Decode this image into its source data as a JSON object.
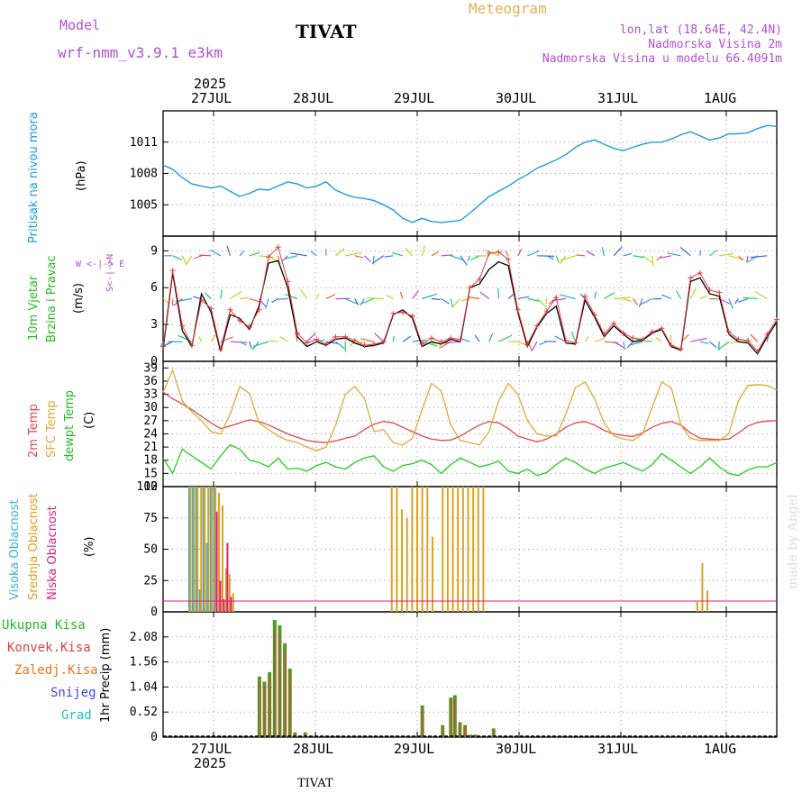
{
  "header": {
    "model_label": "Model",
    "model_value": "wrf-nmm_v3.9.1 e3km",
    "station": "TIVAT",
    "title": "Meteogram",
    "coords": "lon,lat (18.64E, 42.4N)",
    "elevation": "Nadmorska Visina 2m",
    "model_elevation": "Nadmorska Visina u modelu 66.4091m",
    "footer_station": "TIVAT",
    "watermark": "made by Angel"
  },
  "time_axis": {
    "year": "2025",
    "days": [
      "27JUL",
      "28JUL",
      "29JUL",
      "30JUL",
      "31JUL",
      "1AUG"
    ]
  },
  "panel_labels": {
    "pressure": {
      "name": "Pritisak na nivou mora",
      "unit": "(hPa)"
    },
    "wind": {
      "name1": "10m Vjetar",
      "name2": "Brzina i Pravac",
      "unit": "(m/s)",
      "compass": "W <-|-> E",
      "compass_ns": "S<-|->N"
    },
    "temp": {
      "name1": "2m Temp",
      "name2": "SFC Temp",
      "name3": "dewpt Temp",
      "unit": "(C)"
    },
    "cloud": {
      "name1": "Visoka Oblacnost",
      "name2": "Srednja Oblacnost",
      "name3": "Niska Oblacnost",
      "unit": "(%)"
    },
    "precip": {
      "l1": "Ukupna Kisa",
      "l2": "Konvek.Kisa",
      "l3": "Zaledj.Kisa",
      "l4": "Snijeg",
      "l5": "Grad",
      "unit": "1hr Precip (mm)"
    }
  },
  "colors": {
    "pressure": "#1e9be0",
    "temp2m": "#e04848",
    "sfc": "#e0a838",
    "dewpt": "#22cc22",
    "high_cloud": "#3ab0d8",
    "mid_cloud": "#e0a020",
    "low_cloud": "#d82080",
    "precip_total": "#559922",
    "precip_conv": "#e04040",
    "precip_freeze": "#f07020",
    "snow": "#4444ee",
    "hail": "#20c0c0",
    "wind_line": "#000000",
    "wind_cross": "#e04040",
    "purple": "#b050d0"
  },
  "chart_data": [
    {
      "type": "line",
      "name": "pressure",
      "ylabel": "(hPa)",
      "yticks": [
        "1005",
        "1008",
        "1011"
      ],
      "ylim": [
        1002,
        1014
      ],
      "x_hours_from_start": "0 = 2025-07-26 12UTC, step 3h",
      "values": [
        1008.8,
        1008.4,
        1007.6,
        1007.0,
        1006.8,
        1006.6,
        1006.8,
        1006.3,
        1005.8,
        1006.1,
        1006.5,
        1006.4,
        1006.8,
        1007.2,
        1007.0,
        1006.6,
        1006.8,
        1007.2,
        1006.4,
        1006.0,
        1005.7,
        1005.6,
        1005.4,
        1005.0,
        1004.5,
        1003.7,
        1003.3,
        1003.7,
        1003.4,
        1003.3,
        1003.4,
        1003.5,
        1004.2,
        1005.0,
        1005.8,
        1006.3,
        1006.8,
        1007.4,
        1007.9,
        1008.5,
        1008.9,
        1009.3,
        1009.8,
        1010.5,
        1011.0,
        1011.2,
        1010.8,
        1010.4,
        1010.2,
        1010.5,
        1010.8,
        1011.0,
        1011.0,
        1011.3,
        1011.7,
        1012.0,
        1011.6,
        1011.2,
        1011.4,
        1011.8,
        1011.8,
        1011.9,
        1012.3,
        1012.6,
        1012.5
      ]
    },
    {
      "type": "line",
      "name": "wind_speed",
      "ylabel": "(m/s)",
      "yticks": [
        "0",
        "3",
        "6",
        "9"
      ],
      "ylim": [
        0,
        10.2
      ],
      "values": [
        1.0,
        7.2,
        2.5,
        1.2,
        5.5,
        4.0,
        0.8,
        3.8,
        3.5,
        2.6,
        4.5,
        8.0,
        8.2,
        6.0,
        2.0,
        1.2,
        1.6,
        1.3,
        1.8,
        1.9,
        1.5,
        1.2,
        1.3,
        1.5,
        3.8,
        4.2,
        3.5,
        1.2,
        1.6,
        1.4,
        1.8,
        1.6,
        6.0,
        6.3,
        7.5,
        8.1,
        7.8,
        4.0,
        1.2,
        2.8,
        3.9,
        4.5,
        1.5,
        1.4,
        5.0,
        3.6,
        2.0,
        2.9,
        2.2,
        1.6,
        1.7,
        2.3,
        2.6,
        1.2,
        0.9,
        6.5,
        6.8,
        5.5,
        5.3,
        2.2,
        1.6,
        1.5,
        0.6,
        2.0,
        3.2
      ],
      "crosses": [
        1.2,
        7.4,
        2.9,
        1.3,
        5.0,
        4.3,
        1.0,
        4.2,
        3.3,
        2.8,
        4.2,
        8.5,
        9.3,
        6.5,
        2.3,
        1.5,
        1.8,
        1.4,
        2.0,
        2.0,
        1.7,
        1.3,
        1.4,
        1.6,
        3.9,
        4.0,
        3.7,
        1.4,
        1.9,
        1.6,
        1.9,
        1.8,
        6.0,
        6.7,
        8.8,
        8.9,
        8.3,
        4.2,
        1.4,
        2.9,
        4.1,
        5.2,
        1.7,
        1.5,
        5.3,
        3.8,
        2.2,
        3.1,
        2.3,
        1.9,
        1.8,
        2.4,
        2.7,
        1.3,
        1.0,
        6.8,
        7.2,
        5.8,
        5.6,
        2.4,
        1.8,
        1.7,
        0.8,
        2.2,
        3.4
      ]
    },
    {
      "type": "line",
      "name": "temperature",
      "ylabel": "(C)",
      "yticks": [
        "12",
        "15",
        "18",
        "21",
        "24",
        "27",
        "30",
        "33",
        "36",
        "39"
      ],
      "ylim": [
        12,
        40.5
      ],
      "series": [
        {
          "name": "2m Temp",
          "values": [
            33.5,
            32.0,
            30.8,
            29.5,
            28.0,
            26.5,
            25.2,
            25.8,
            26.5,
            27.2,
            26.8,
            26.0,
            25.0,
            24.0,
            23.2,
            22.5,
            22.2,
            22.0,
            22.4,
            23.0,
            23.5,
            25.0,
            26.2,
            26.8,
            26.5,
            25.5,
            24.5,
            23.5,
            22.8,
            22.5,
            22.6,
            23.5,
            24.8,
            26.0,
            26.8,
            26.5,
            25.2,
            23.5,
            22.8,
            22.2,
            22.8,
            24.0,
            25.5,
            26.5,
            26.8,
            26.0,
            24.8,
            24.0,
            23.6,
            23.4,
            24.2,
            25.5,
            26.4,
            26.8,
            26.0,
            24.2,
            23.0,
            22.8,
            22.7,
            22.8,
            24.2,
            25.8,
            26.6,
            26.9,
            27.0
          ]
        },
        {
          "name": "SFC Temp",
          "values": [
            33.5,
            38.5,
            31.5,
            29.0,
            27.0,
            24.5,
            24.0,
            28.5,
            34.8,
            33.2,
            26.5,
            25.0,
            23.5,
            22.5,
            22.0,
            21.0,
            20.2,
            21.0,
            26.0,
            33.0,
            34.8,
            32.0,
            24.5,
            25.0,
            22.0,
            21.5,
            23.0,
            29.5,
            35.5,
            33.8,
            26.0,
            22.5,
            22.0,
            21.5,
            24.5,
            31.5,
            35.5,
            33.0,
            27.0,
            24.0,
            23.5,
            23.5,
            28.5,
            34.5,
            35.8,
            32.0,
            26.5,
            23.5,
            22.8,
            22.5,
            24.0,
            30.0,
            35.8,
            34.5,
            26.0,
            23.0,
            22.5,
            22.5,
            22.5,
            24.0,
            31.5,
            35.0,
            35.2,
            35.0,
            34.0
          ]
        },
        {
          "name": "dewpt Temp",
          "values": [
            18.5,
            15.0,
            20.5,
            19.0,
            17.5,
            16.0,
            19.0,
            21.5,
            20.5,
            18.0,
            17.5,
            16.5,
            18.5,
            16.0,
            16.2,
            15.5,
            16.8,
            17.5,
            16.5,
            16.0,
            17.5,
            18.5,
            19.0,
            16.5,
            15.5,
            16.8,
            17.2,
            18.0,
            17.0,
            15.0,
            17.0,
            18.5,
            17.5,
            16.5,
            17.0,
            17.8,
            15.5,
            15.0,
            16.0,
            14.5,
            15.2,
            17.0,
            18.5,
            17.5,
            16.0,
            15.0,
            16.2,
            16.8,
            17.5,
            16.5,
            15.5,
            17.0,
            19.5,
            18.0,
            16.5,
            15.0,
            16.5,
            18.5,
            16.5,
            15.0,
            14.5,
            15.8,
            16.5,
            16.5,
            17.5
          ]
        }
      ]
    },
    {
      "type": "bar",
      "name": "cloud",
      "ylabel": "(%)",
      "yticks": [
        "0",
        "25",
        "50",
        "75",
        "100"
      ],
      "ylim": [
        0,
        100
      ],
      "series": [
        {
          "name": "Visoka Oblacnost",
          "values": [
            0,
            0,
            0,
            0,
            100,
            100,
            100,
            18,
            100,
            55,
            100,
            100,
            0,
            0,
            0,
            0,
            0,
            0,
            0,
            0,
            0,
            0,
            0,
            0,
            0,
            0,
            0,
            0,
            0,
            0,
            0,
            0,
            0,
            0,
            0,
            0,
            0,
            0,
            0,
            0,
            0,
            0,
            0,
            0,
            0,
            0,
            0,
            0,
            0,
            0,
            0,
            0,
            0,
            0,
            0,
            0,
            0,
            0,
            0,
            0,
            0,
            0,
            0,
            0
          ]
        },
        {
          "name": "Srednja Oblacnost",
          "values": [
            0,
            0,
            0,
            0,
            100,
            100,
            100,
            100,
            100,
            100,
            100,
            100,
            95,
            85,
            35,
            30,
            15,
            0,
            0,
            0,
            0,
            0,
            0,
            0,
            0,
            0,
            0,
            0,
            0,
            0,
            0,
            0,
            0,
            0,
            0,
            0,
            0,
            0,
            0,
            0,
            0,
            0,
            0,
            0,
            0,
            0,
            0,
            0,
            0,
            0,
            0,
            0,
            0,
            0,
            0,
            0,
            0,
            0,
            0,
            0,
            0,
            0,
            0,
            0
          ]
        },
        {
          "name": "Niska Oblacnost",
          "values": [
            0,
            0,
            0,
            0,
            0,
            0,
            0,
            0,
            0,
            0,
            0,
            80,
            25,
            10,
            55,
            12,
            0,
            0,
            0,
            0,
            0,
            0,
            0,
            0,
            0,
            0,
            0,
            0,
            0,
            0,
            0,
            0,
            0,
            0,
            0,
            0,
            0,
            0,
            0,
            0,
            0,
            0,
            0,
            0,
            0,
            0,
            0,
            0,
            0,
            0,
            0,
            0,
            0,
            0,
            0,
            0,
            0,
            0,
            0,
            0,
            0,
            0,
            0,
            0
          ]
        }
      ],
      "mid_events": [
        {
          "day_offset": 1.75,
          "value": 100
        },
        {
          "day_offset": 1.8,
          "value": 100
        },
        {
          "day_offset": 1.85,
          "value": 82
        },
        {
          "day_offset": 1.9,
          "value": 75
        },
        {
          "day_offset": 1.95,
          "value": 100
        },
        {
          "day_offset": 2.0,
          "value": 100
        },
        {
          "day_offset": 2.05,
          "value": 100
        },
        {
          "day_offset": 2.1,
          "value": 100
        },
        {
          "day_offset": 2.15,
          "value": 60
        },
        {
          "day_offset": 2.25,
          "value": 100
        },
        {
          "day_offset": 2.3,
          "value": 100
        },
        {
          "day_offset": 2.35,
          "value": 100
        },
        {
          "day_offset": 2.4,
          "value": 100
        },
        {
          "day_offset": 2.45,
          "value": 100
        },
        {
          "day_offset": 2.5,
          "value": 100
        },
        {
          "day_offset": 2.55,
          "value": 100
        },
        {
          "day_offset": 2.6,
          "value": 100
        },
        {
          "day_offset": 2.65,
          "value": 100
        },
        {
          "day_offset": 4.75,
          "value": 8
        },
        {
          "day_offset": 4.8,
          "value": 39
        },
        {
          "day_offset": 4.85,
          "value": 17
        }
      ]
    },
    {
      "type": "bar",
      "name": "precipitation",
      "ylabel": "1hr Precip (mm)",
      "yticks": [
        "0",
        "0.52",
        "1.04",
        "1.56",
        "2.08"
      ],
      "ylim": [
        0,
        2.6
      ],
      "events": [
        {
          "day_offset": 0.45,
          "total": 1.26
        },
        {
          "day_offset": 0.5,
          "total": 1.15
        },
        {
          "day_offset": 0.55,
          "total": 1.35
        },
        {
          "day_offset": 0.6,
          "total": 2.43
        },
        {
          "day_offset": 0.65,
          "total": 2.32
        },
        {
          "day_offset": 0.7,
          "total": 1.95
        },
        {
          "day_offset": 0.75,
          "total": 1.42
        },
        {
          "day_offset": 0.8,
          "total": 0.1
        },
        {
          "day_offset": 0.9,
          "total": 0.1
        },
        {
          "day_offset": 2.05,
          "total": 0.66
        },
        {
          "day_offset": 2.25,
          "total": 0.25
        },
        {
          "day_offset": 2.33,
          "total": 0.82
        },
        {
          "day_offset": 2.37,
          "total": 0.87
        },
        {
          "day_offset": 2.42,
          "total": 0.31
        },
        {
          "day_offset": 2.47,
          "total": 0.25
        },
        {
          "day_offset": 2.52,
          "total": 0.05
        },
        {
          "day_offset": 2.57,
          "total": 0.05
        },
        {
          "day_offset": 2.75,
          "total": 0.18
        }
      ]
    }
  ]
}
